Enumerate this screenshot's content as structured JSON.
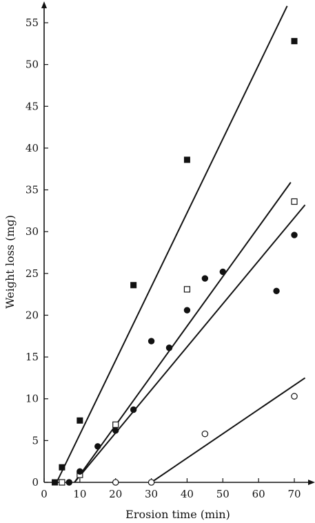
{
  "chart_data": {
    "type": "scatter",
    "xlabel": "Erosion time (min)",
    "ylabel": "Weight loss (mg)",
    "xlim": [
      0,
      75
    ],
    "ylim": [
      0,
      58
    ],
    "xticks": [
      0,
      10,
      20,
      30,
      40,
      50,
      60,
      70
    ],
    "yticks": [
      0,
      5,
      10,
      15,
      20,
      25,
      30,
      35,
      40,
      45,
      50,
      55
    ],
    "grid": false,
    "legend": "none",
    "series": [
      {
        "marker": "filled-square",
        "color": "#111111",
        "points": [
          [
            3,
            0
          ],
          [
            5,
            1.8
          ],
          [
            10,
            7.4
          ],
          [
            25,
            23.6
          ],
          [
            40,
            38.6
          ],
          [
            70,
            52.8
          ]
        ],
        "fit_line": [
          [
            3.5,
            0
          ],
          [
            68,
            57
          ]
        ]
      },
      {
        "marker": "open-square",
        "color": "#111111",
        "points": [
          [
            5,
            0
          ],
          [
            10,
            0.9
          ],
          [
            20,
            6.9
          ],
          [
            40,
            23.1
          ],
          [
            70,
            33.6
          ]
        ],
        "fit_line": [
          [
            8.5,
            0
          ],
          [
            69,
            35.9
          ]
        ]
      },
      {
        "marker": "filled-circle",
        "color": "#111111",
        "points": [
          [
            7,
            0
          ],
          [
            10,
            1.3
          ],
          [
            15,
            4.3
          ],
          [
            20,
            6.2
          ],
          [
            25,
            8.7
          ],
          [
            30,
            16.9
          ],
          [
            35,
            16.1
          ],
          [
            40,
            20.6
          ],
          [
            45,
            24.4
          ],
          [
            50,
            25.2
          ],
          [
            65,
            22.9
          ],
          [
            70,
            29.6
          ]
        ],
        "fit_line": [
          [
            8.5,
            0
          ],
          [
            73,
            33.2
          ]
        ]
      },
      {
        "marker": "open-circle",
        "color": "#111111",
        "points": [
          [
            20,
            0
          ],
          [
            30,
            0
          ],
          [
            45,
            5.8
          ],
          [
            70,
            10.3
          ]
        ],
        "fit_line": [
          [
            30,
            0
          ],
          [
            73,
            12.5
          ]
        ]
      }
    ]
  }
}
